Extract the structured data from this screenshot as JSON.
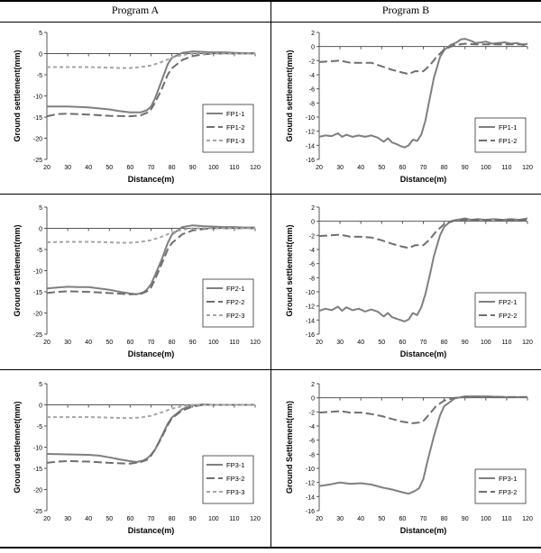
{
  "table": {
    "headers": [
      "Program  A",
      "Program  B"
    ]
  },
  "chart_data": [
    {
      "type": "line",
      "xlabel": "Distance(m)",
      "ylabel": "Ground settlement(mm)",
      "xlim": [
        20,
        120
      ],
      "ylim": [
        -25,
        5
      ],
      "xticks": [
        20,
        30,
        40,
        50,
        60,
        70,
        80,
        90,
        100,
        110,
        120
      ],
      "yticks": [
        5,
        0,
        -5,
        -10,
        -15,
        -20,
        -25
      ],
      "grid": false,
      "legend_position": "bottom-right",
      "series": [
        {
          "name": "FP1-1",
          "style": "solid",
          "color": "#7f7f7f",
          "x": [
            20,
            30,
            40,
            50,
            55,
            60,
            65,
            68,
            70,
            72,
            75,
            78,
            80,
            85,
            90,
            95,
            100,
            105,
            110,
            115,
            120
          ],
          "y": [
            -12.5,
            -12.5,
            -12.7,
            -13.2,
            -13.6,
            -13.9,
            -13.9,
            -13.4,
            -12.5,
            -10.5,
            -6.5,
            -2.5,
            -1.0,
            0.2,
            0.5,
            0.4,
            0.3,
            0.3,
            0.2,
            0.1,
            0.1
          ]
        },
        {
          "name": "FP1-2",
          "style": "dashed",
          "color": "#6f6f6f",
          "x": [
            20,
            25,
            30,
            40,
            50,
            60,
            65,
            68,
            70,
            72,
            75,
            78,
            80,
            85,
            90,
            95,
            100,
            110,
            120
          ],
          "y": [
            -14.8,
            -14.3,
            -14.2,
            -14.4,
            -14.7,
            -14.8,
            -14.6,
            -14.0,
            -13.2,
            -11.5,
            -8.5,
            -5.0,
            -3.5,
            -1.5,
            -0.6,
            -0.2,
            0.0,
            0.0,
            0.0
          ]
        },
        {
          "name": "FP1-3",
          "style": "dotted",
          "color": "#a6a6a6",
          "x": [
            20,
            30,
            40,
            50,
            55,
            60,
            65,
            70,
            75,
            80,
            85,
            90,
            95,
            100,
            110,
            120
          ],
          "y": [
            -3.2,
            -3.2,
            -3.2,
            -3.3,
            -3.4,
            -3.4,
            -3.2,
            -2.8,
            -2.0,
            -1.0,
            -0.3,
            0.0,
            0.0,
            0.0,
            0.0,
            0.0
          ]
        }
      ]
    },
    {
      "type": "line",
      "xlabel": "Distance(m)",
      "ylabel": "Ground settlement(mm)",
      "xlim": [
        20,
        120
      ],
      "ylim": [
        -16,
        2
      ],
      "xticks": [
        20,
        30,
        40,
        50,
        60,
        70,
        80,
        90,
        100,
        110,
        120
      ],
      "yticks": [
        2,
        0,
        -2,
        -4,
        -6,
        -8,
        -10,
        -12,
        -14,
        -16
      ],
      "grid": false,
      "legend_position": "bottom-right",
      "series": [
        {
          "name": "FP1-1",
          "style": "solid",
          "color": "#7f7f7f",
          "x": [
            20,
            23,
            26,
            29,
            31,
            33,
            36,
            39,
            42,
            45,
            48,
            51,
            53,
            55,
            57,
            59,
            61,
            63,
            65,
            67,
            69,
            71,
            73,
            75,
            78,
            80,
            83,
            86,
            88,
            90,
            93,
            95,
            98,
            100,
            103,
            106,
            109,
            112,
            115,
            118,
            120
          ],
          "y": [
            -12.8,
            -12.6,
            -12.7,
            -12.3,
            -12.8,
            -12.5,
            -12.8,
            -12.6,
            -12.8,
            -12.6,
            -12.9,
            -13.5,
            -13.0,
            -13.6,
            -13.8,
            -14.1,
            -14.3,
            -14.0,
            -13.2,
            -13.4,
            -12.5,
            -10.5,
            -7.5,
            -4.5,
            -1.5,
            -0.5,
            0.2,
            0.6,
            1.0,
            1.1,
            0.8,
            0.5,
            0.6,
            0.7,
            0.4,
            0.5,
            0.6,
            0.4,
            0.5,
            0.2,
            0.4
          ]
        },
        {
          "name": "FP1-2",
          "style": "dashed",
          "color": "#6f6f6f",
          "x": [
            20,
            25,
            30,
            35,
            40,
            45,
            50,
            55,
            60,
            63,
            66,
            70,
            73,
            76,
            80,
            85,
            90,
            95,
            100,
            105,
            110,
            115,
            120
          ],
          "y": [
            -2.2,
            -2.1,
            -2.0,
            -2.3,
            -2.3,
            -2.3,
            -2.8,
            -3.3,
            -3.7,
            -3.9,
            -3.5,
            -3.5,
            -2.7,
            -1.6,
            -0.4,
            0.2,
            0.4,
            0.3,
            0.3,
            0.3,
            0.3,
            0.3,
            0.3
          ]
        }
      ]
    },
    {
      "type": "line",
      "xlabel": "Distance(m)",
      "ylabel": "Ground settlement(mm)",
      "xlim": [
        20,
        120
      ],
      "ylim": [
        -25,
        5
      ],
      "xticks": [
        20,
        30,
        40,
        50,
        60,
        70,
        80,
        90,
        100,
        110,
        120
      ],
      "yticks": [
        5,
        0,
        -5,
        -10,
        -15,
        -20,
        -25
      ],
      "grid": false,
      "legend_position": "bottom-right",
      "series": [
        {
          "name": "FP2-1",
          "style": "solid",
          "color": "#7f7f7f",
          "x": [
            20,
            25,
            30,
            35,
            40,
            45,
            50,
            55,
            60,
            63,
            66,
            68,
            70,
            72,
            75,
            78,
            80,
            85,
            90,
            95,
            100,
            105,
            110,
            115,
            120
          ],
          "y": [
            -14.2,
            -14.0,
            -13.8,
            -13.9,
            -13.9,
            -14.2,
            -14.5,
            -15.0,
            -15.4,
            -15.6,
            -15.2,
            -14.5,
            -13.2,
            -11.0,
            -7.5,
            -3.5,
            -1.5,
            0.3,
            0.7,
            0.5,
            0.4,
            0.3,
            0.3,
            0.2,
            0.2
          ]
        },
        {
          "name": "FP2-2",
          "style": "dashed",
          "color": "#6f6f6f",
          "x": [
            20,
            25,
            30,
            40,
            50,
            60,
            65,
            68,
            70,
            72,
            75,
            78,
            80,
            85,
            90,
            95,
            100,
            110,
            120
          ],
          "y": [
            -15.3,
            -15.0,
            -14.9,
            -15.0,
            -15.3,
            -15.6,
            -15.5,
            -14.9,
            -14.0,
            -12.0,
            -8.5,
            -5.0,
            -3.5,
            -1.4,
            -0.5,
            -0.2,
            0.0,
            0.0,
            0.0
          ]
        },
        {
          "name": "FP2-3",
          "style": "dotted",
          "color": "#a6a6a6",
          "x": [
            20,
            30,
            40,
            50,
            55,
            60,
            65,
            70,
            75,
            80,
            85,
            90,
            95,
            100,
            110,
            120
          ],
          "y": [
            -3.3,
            -3.2,
            -3.2,
            -3.3,
            -3.4,
            -3.4,
            -3.2,
            -2.8,
            -2.0,
            -1.0,
            -0.3,
            0.0,
            0.0,
            0.0,
            0.0,
            0.0
          ]
        }
      ]
    },
    {
      "type": "line",
      "xlabel": "Distance(m)",
      "ylabel": "Ground settlement(mm)",
      "xlim": [
        20,
        120
      ],
      "ylim": [
        -16,
        2
      ],
      "xticks": [
        20,
        30,
        40,
        50,
        60,
        70,
        80,
        90,
        100,
        110,
        120
      ],
      "yticks": [
        2,
        0,
        -2,
        -4,
        -6,
        -8,
        -10,
        -12,
        -14,
        -16
      ],
      "grid": false,
      "legend_position": "bottom-right",
      "series": [
        {
          "name": "FP2-1",
          "style": "solid",
          "color": "#7f7f7f",
          "x": [
            20,
            23,
            26,
            29,
            31,
            33,
            36,
            39,
            42,
            45,
            48,
            51,
            53,
            55,
            57,
            59,
            61,
            63,
            65,
            67,
            69,
            71,
            73,
            75,
            78,
            80,
            83,
            86,
            90,
            93,
            96,
            100,
            104,
            108,
            112,
            116,
            120
          ],
          "y": [
            -12.7,
            -12.4,
            -12.6,
            -12.1,
            -12.7,
            -12.2,
            -12.6,
            -12.4,
            -12.8,
            -12.5,
            -12.8,
            -13.5,
            -13.0,
            -13.6,
            -13.8,
            -14.0,
            -14.2,
            -13.9,
            -13.0,
            -13.3,
            -12.2,
            -10.3,
            -7.8,
            -5.0,
            -2.0,
            -0.8,
            0.0,
            0.2,
            0.4,
            0.2,
            0.3,
            0.2,
            0.3,
            0.2,
            0.3,
            0.2,
            0.4
          ]
        },
        {
          "name": "FP2-2",
          "style": "dashed",
          "color": "#6f6f6f",
          "x": [
            20,
            25,
            30,
            35,
            40,
            45,
            50,
            55,
            60,
            63,
            66,
            70,
            73,
            76,
            80,
            85,
            90,
            95,
            100,
            105,
            110,
            115,
            120
          ],
          "y": [
            -2.1,
            -2.0,
            -1.9,
            -2.2,
            -2.2,
            -2.3,
            -2.7,
            -3.2,
            -3.6,
            -3.8,
            -3.4,
            -3.4,
            -2.6,
            -1.5,
            -0.4,
            0.1,
            0.2,
            0.2,
            0.2,
            0.2,
            0.2,
            0.2,
            0.2
          ]
        }
      ]
    },
    {
      "type": "line",
      "xlabel": "Distance(m)",
      "ylabel": "Ground settlemnet(mm)",
      "xlim": [
        20,
        120
      ],
      "ylim": [
        -25,
        5
      ],
      "xticks": [
        20,
        30,
        40,
        50,
        60,
        70,
        80,
        90,
        100,
        110,
        120
      ],
      "yticks": [
        5,
        0,
        -5,
        -10,
        -15,
        -20,
        -25
      ],
      "grid": false,
      "legend_position": "bottom-right",
      "series": [
        {
          "name": "FP3-1",
          "style": "solid",
          "color": "#7f7f7f",
          "x": [
            20,
            30,
            40,
            45,
            50,
            55,
            60,
            63,
            66,
            68,
            70,
            72,
            75,
            78,
            80,
            85,
            90,
            95,
            100,
            110,
            120
          ],
          "y": [
            -11.6,
            -11.7,
            -11.8,
            -12.0,
            -12.4,
            -12.9,
            -13.3,
            -13.5,
            -13.2,
            -12.7,
            -11.8,
            -10.5,
            -7.5,
            -4.5,
            -3.0,
            -1.0,
            -0.1,
            0.1,
            0.0,
            0.0,
            0.0
          ]
        },
        {
          "name": "FP3-2",
          "style": "dashed",
          "color": "#6f6f6f",
          "x": [
            20,
            25,
            30,
            40,
            50,
            60,
            65,
            68,
            70,
            72,
            75,
            78,
            80,
            85,
            90,
            95,
            100,
            110,
            120
          ],
          "y": [
            -13.7,
            -13.4,
            -13.3,
            -13.4,
            -13.7,
            -13.9,
            -13.5,
            -13.0,
            -12.0,
            -10.5,
            -7.8,
            -4.8,
            -3.2,
            -1.3,
            -0.4,
            0.0,
            0.0,
            0.0,
            0.0
          ]
        },
        {
          "name": "FP3-3",
          "style": "dotted",
          "color": "#a6a6a6",
          "x": [
            20,
            30,
            40,
            50,
            55,
            60,
            65,
            70,
            75,
            80,
            85,
            90,
            95,
            100,
            110,
            120
          ],
          "y": [
            -2.9,
            -2.9,
            -2.9,
            -3.0,
            -3.1,
            -3.1,
            -3.0,
            -2.6,
            -1.8,
            -0.9,
            -0.3,
            0.0,
            0.0,
            0.0,
            0.0,
            0.0
          ]
        }
      ]
    },
    {
      "type": "line",
      "xlabel": "Distance(m)",
      "ylabel": "Ground Settlement(mm)",
      "xlim": [
        20,
        120
      ],
      "ylim": [
        -16,
        2
      ],
      "xticks": [
        20,
        30,
        40,
        50,
        60,
        70,
        80,
        90,
        100,
        110,
        120
      ],
      "yticks": [
        2,
        0,
        -2,
        -4,
        -6,
        -8,
        -10,
        -12,
        -14,
        -16
      ],
      "grid": false,
      "legend_position": "bottom-right",
      "series": [
        {
          "name": "FP3-1",
          "style": "solid",
          "color": "#7f7f7f",
          "x": [
            20,
            25,
            30,
            35,
            40,
            45,
            50,
            55,
            60,
            63,
            66,
            68,
            70,
            72,
            75,
            78,
            80,
            85,
            90,
            95,
            100,
            110,
            120
          ],
          "y": [
            -12.5,
            -12.3,
            -12.0,
            -12.2,
            -12.1,
            -12.3,
            -12.7,
            -13.0,
            -13.4,
            -13.6,
            -13.2,
            -12.8,
            -11.5,
            -9.0,
            -5.5,
            -2.5,
            -1.2,
            -0.1,
            0.2,
            0.2,
            0.2,
            0.1,
            0.1
          ]
        },
        {
          "name": "FP3-2",
          "style": "dashed",
          "color": "#6f6f6f",
          "x": [
            20,
            25,
            30,
            35,
            40,
            45,
            50,
            55,
            60,
            65,
            68,
            70,
            73,
            76,
            80,
            85,
            90,
            95,
            100,
            110,
            120
          ],
          "y": [
            -2.1,
            -2.0,
            -1.9,
            -2.1,
            -2.1,
            -2.3,
            -2.6,
            -3.0,
            -3.4,
            -3.6,
            -3.5,
            -3.3,
            -2.3,
            -1.2,
            -0.4,
            0.0,
            0.1,
            0.1,
            0.1,
            0.1,
            0.1
          ]
        }
      ]
    }
  ]
}
